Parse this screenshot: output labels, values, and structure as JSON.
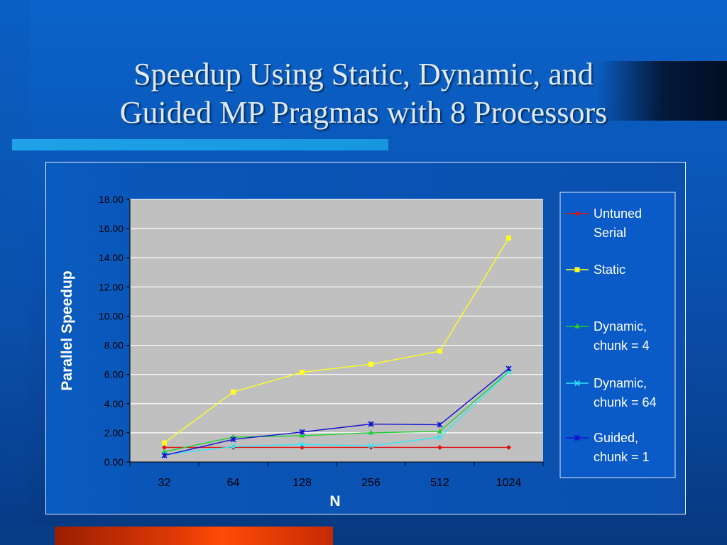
{
  "slide": {
    "title_line1": "Speedup Using Static, Dynamic, and",
    "title_line2": "Guided MP Pragmas with 8 Processors"
  },
  "colors": {
    "plot_background": "#c0c0c0",
    "legend_background": "#0a5bc8",
    "axis_text": "#000000",
    "label_text": "#ffffff"
  },
  "chart_data": {
    "type": "line",
    "title": "",
    "xlabel": "N",
    "ylabel": "Parallel Speedup",
    "categories": [
      "32",
      "64",
      "128",
      "256",
      "512",
      "1024"
    ],
    "ylim": [
      0,
      18
    ],
    "ytick_step": 2,
    "ytick_format": "2dp",
    "grid": true,
    "legend_position": "right",
    "series": [
      {
        "name": "Untuned Serial",
        "legend_lines": [
          "Untuned",
          "Serial"
        ],
        "color": "#e01010",
        "marker": "diamond",
        "values": [
          1.0,
          1.0,
          1.0,
          1.0,
          1.0,
          1.0
        ]
      },
      {
        "name": "Static",
        "legend_lines": [
          "Static"
        ],
        "color": "#ffff20",
        "marker": "square",
        "values": [
          1.3,
          4.8,
          6.15,
          6.7,
          7.6,
          15.35
        ]
      },
      {
        "name": "Dynamic, chunk = 4",
        "legend_lines": [
          "Dynamic,",
          "chunk = 4"
        ],
        "color": "#20d030",
        "marker": "triangle",
        "values": [
          0.7,
          1.7,
          1.8,
          2.0,
          2.1,
          6.2
        ]
      },
      {
        "name": "Dynamic, chunk = 64",
        "legend_lines": [
          "Dynamic,",
          "chunk = 64"
        ],
        "color": "#30e8f8",
        "marker": "x",
        "values": [
          0.5,
          1.05,
          1.2,
          1.1,
          1.7,
          6.15
        ]
      },
      {
        "name": "Guided, chunk = 1",
        "legend_lines": [
          "Guided,",
          "chunk = 1"
        ],
        "color": "#1010d0",
        "marker": "star",
        "values": [
          0.45,
          1.55,
          2.05,
          2.6,
          2.55,
          6.4
        ]
      }
    ]
  }
}
